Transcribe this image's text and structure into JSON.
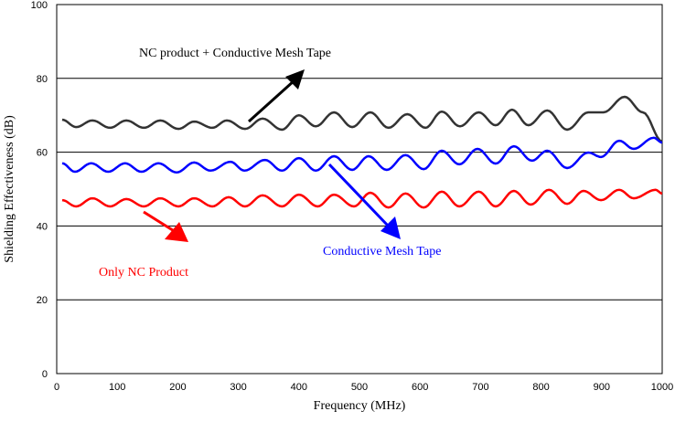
{
  "chart_data": {
    "type": "line",
    "xlabel": "Frequency (MHz)",
    "ylabel": "Shielding Effectiveness (dB)",
    "xlim": [
      0,
      1000
    ],
    "ylim": [
      0,
      100
    ],
    "xticks": [
      "0",
      "100",
      "200",
      "300",
      "400",
      "500",
      "600",
      "700",
      "800",
      "900",
      "1000"
    ],
    "yticks": [
      "0",
      "20",
      "40",
      "60",
      "80",
      "100"
    ],
    "grid": "horizontal",
    "series": [
      {
        "name": "NC product + Conductive Mesh Tape",
        "color": "#333333",
        "points": [
          [
            9,
            68.8
          ],
          [
            32,
            66.8
          ],
          [
            59,
            68.6
          ],
          [
            88,
            66.6
          ],
          [
            115,
            68.6
          ],
          [
            144,
            66.6
          ],
          [
            171,
            68.6
          ],
          [
            201,
            66.3
          ],
          [
            227,
            68.3
          ],
          [
            257,
            66.6
          ],
          [
            281,
            68.6
          ],
          [
            311,
            66.3
          ],
          [
            340,
            69.1
          ],
          [
            372,
            66.1
          ],
          [
            400,
            70
          ],
          [
            428,
            67
          ],
          [
            458,
            70.8
          ],
          [
            488,
            66.8
          ],
          [
            518,
            70.8
          ],
          [
            548,
            66.6
          ],
          [
            579,
            70.3
          ],
          [
            609,
            66.6
          ],
          [
            636,
            71
          ],
          [
            666,
            67
          ],
          [
            697,
            70.8
          ],
          [
            725,
            67.3
          ],
          [
            752,
            71.5
          ],
          [
            779,
            67.3
          ],
          [
            810,
            71.3
          ],
          [
            843,
            66.1
          ],
          [
            878,
            70.8
          ],
          [
            903,
            70.8
          ],
          [
            938,
            75
          ],
          [
            968,
            70.8
          ],
          [
            1000,
            62.9
          ]
        ]
      },
      {
        "name": "Conductive Mesh Tape",
        "color": "#0000ff",
        "points": [
          [
            9,
            57
          ],
          [
            30,
            54.7
          ],
          [
            57,
            57
          ],
          [
            85,
            54.7
          ],
          [
            113,
            57
          ],
          [
            140,
            54.7
          ],
          [
            168,
            57
          ],
          [
            198,
            54.5
          ],
          [
            227,
            57.2
          ],
          [
            254,
            55
          ],
          [
            287,
            57.4
          ],
          [
            310,
            55
          ],
          [
            344,
            57.9
          ],
          [
            372,
            55
          ],
          [
            400,
            58.4
          ],
          [
            428,
            55
          ],
          [
            458,
            58.9
          ],
          [
            488,
            55.2
          ],
          [
            515,
            58.9
          ],
          [
            545,
            55.2
          ],
          [
            576,
            59.2
          ],
          [
            606,
            55.4
          ],
          [
            636,
            60.4
          ],
          [
            665,
            56.7
          ],
          [
            695,
            60.9
          ],
          [
            725,
            56.9
          ],
          [
            755,
            61.6
          ],
          [
            785,
            57.7
          ],
          [
            810,
            60.4
          ],
          [
            843,
            55.7
          ],
          [
            878,
            59.9
          ],
          [
            899,
            58.7
          ],
          [
            929,
            63.1
          ],
          [
            953,
            60.9
          ],
          [
            986,
            63.9
          ],
          [
            1000,
            62.6
          ]
        ]
      },
      {
        "name": "Only NC Product",
        "color": "#ff0000",
        "points": [
          [
            9,
            47
          ],
          [
            32,
            45.3
          ],
          [
            59,
            47.5
          ],
          [
            88,
            45.3
          ],
          [
            115,
            47.3
          ],
          [
            144,
            45.3
          ],
          [
            171,
            47.5
          ],
          [
            201,
            45.3
          ],
          [
            227,
            47.5
          ],
          [
            257,
            45.3
          ],
          [
            284,
            47.8
          ],
          [
            311,
            45.3
          ],
          [
            340,
            48.3
          ],
          [
            372,
            45.3
          ],
          [
            400,
            48.5
          ],
          [
            431,
            45.3
          ],
          [
            458,
            48.5
          ],
          [
            491,
            45.3
          ],
          [
            518,
            49
          ],
          [
            548,
            45
          ],
          [
            576,
            48.8
          ],
          [
            606,
            45
          ],
          [
            636,
            49.3
          ],
          [
            665,
            45.3
          ],
          [
            697,
            49.3
          ],
          [
            725,
            45.3
          ],
          [
            755,
            49.5
          ],
          [
            783,
            45.8
          ],
          [
            813,
            49.8
          ],
          [
            843,
            46
          ],
          [
            870,
            49.5
          ],
          [
            899,
            47
          ],
          [
            929,
            49.8
          ],
          [
            953,
            47.5
          ],
          [
            989,
            49.8
          ],
          [
            1000,
            48.8
          ]
        ]
      }
    ],
    "annotations": [
      {
        "text": "NC product + Conductive Mesh Tape",
        "color": "#000000"
      },
      {
        "text": "Conductive Mesh Tape",
        "color": "#0000ff"
      },
      {
        "text": "Only NC Product",
        "color": "#ff0000"
      }
    ]
  }
}
